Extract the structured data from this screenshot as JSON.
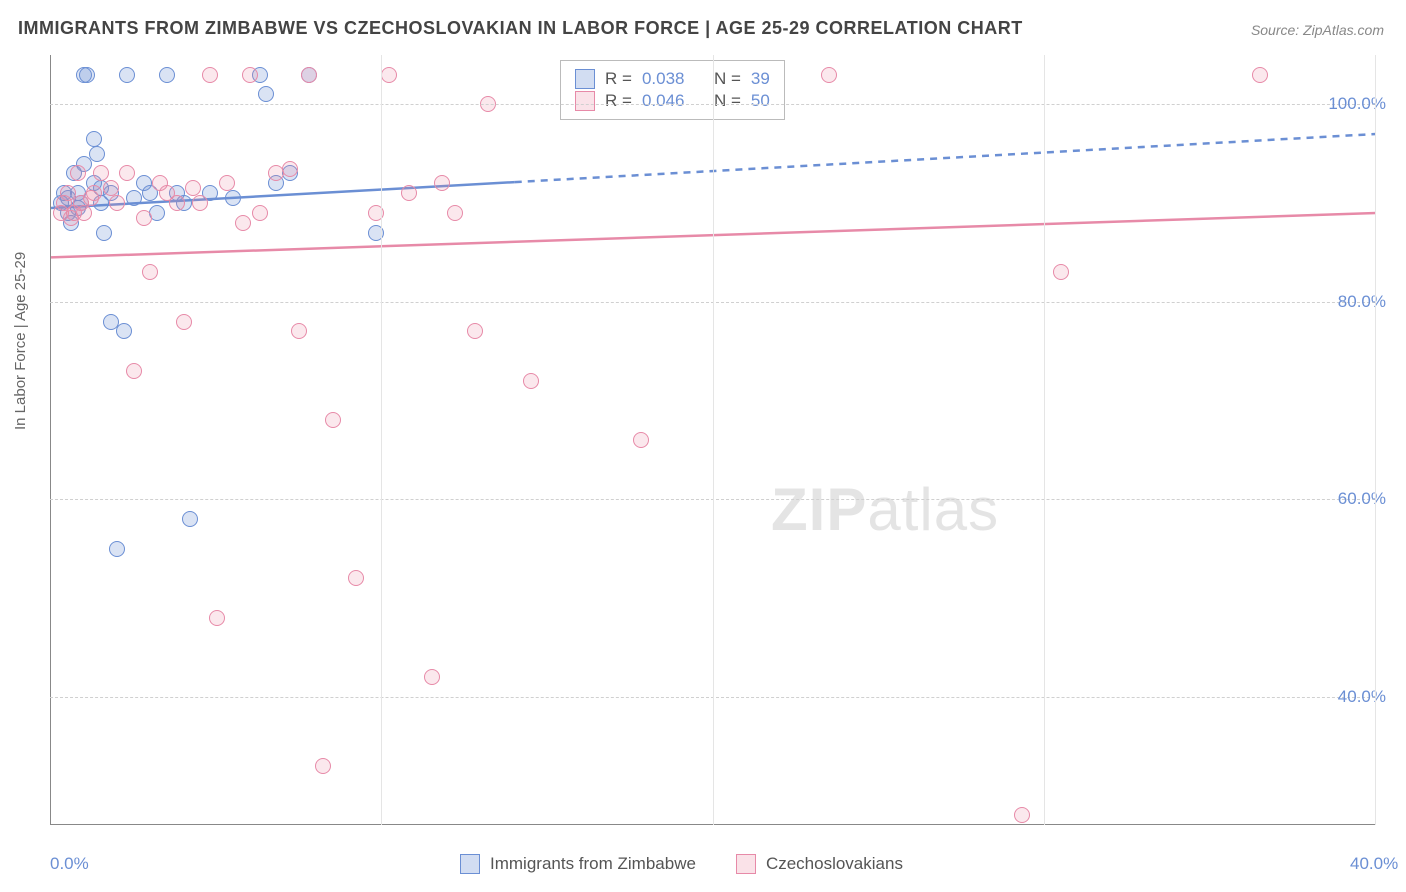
{
  "title": "IMMIGRANTS FROM ZIMBABWE VS CZECHOSLOVAKIAN IN LABOR FORCE | AGE 25-29 CORRELATION CHART",
  "source": "Source: ZipAtlas.com",
  "ylabel": "In Labor Force | Age 25-29",
  "watermark_bold": "ZIP",
  "watermark_light": "atlas",
  "chart": {
    "type": "scatter",
    "xlim": [
      0,
      40
    ],
    "ylim": [
      27,
      105
    ],
    "background_color": "#ffffff",
    "grid_color": "#d0d0d0",
    "axis_color": "#888888",
    "tick_color": "#6b8fd4",
    "marker_size": 16,
    "yticks": [
      {
        "v": 40,
        "label": "40.0%"
      },
      {
        "v": 60,
        "label": "60.0%"
      },
      {
        "v": 80,
        "label": "80.0%"
      },
      {
        "v": 100,
        "label": "100.0%"
      }
    ],
    "xticks": [
      {
        "v": 0,
        "label": "0.0%"
      },
      {
        "v": 10,
        "label": ""
      },
      {
        "v": 20,
        "label": ""
      },
      {
        "v": 30,
        "label": ""
      },
      {
        "v": 40,
        "label": "40.0%"
      }
    ],
    "series": [
      {
        "name": "Immigrants from Zimbabwe",
        "color": "#6b8fd4",
        "fill": "rgba(107,143,212,0.25)",
        "R": "0.038",
        "N": "39",
        "trend": {
          "y0": 89.5,
          "y1": 97,
          "solid_until_x": 14,
          "stroke_width": 2.5,
          "dash": "7,6"
        },
        "points": [
          [
            0.3,
            90
          ],
          [
            0.4,
            91
          ],
          [
            0.5,
            89
          ],
          [
            0.5,
            90.5
          ],
          [
            0.6,
            88
          ],
          [
            0.7,
            93
          ],
          [
            0.8,
            89.5
          ],
          [
            0.8,
            91
          ],
          [
            0.9,
            90
          ],
          [
            1.0,
            94
          ],
          [
            1.0,
            103
          ],
          [
            1.1,
            103
          ],
          [
            1.3,
            92
          ],
          [
            1.3,
            96.5
          ],
          [
            1.4,
            95
          ],
          [
            1.5,
            90
          ],
          [
            1.5,
            91.5
          ],
          [
            1.6,
            87
          ],
          [
            1.8,
            78
          ],
          [
            1.8,
            91
          ],
          [
            2.0,
            55
          ],
          [
            2.2,
            77
          ],
          [
            2.3,
            103
          ],
          [
            2.5,
            90.5
          ],
          [
            2.8,
            92
          ],
          [
            3.0,
            91
          ],
          [
            3.2,
            89
          ],
          [
            3.5,
            103
          ],
          [
            3.8,
            91
          ],
          [
            4.0,
            90
          ],
          [
            4.2,
            58
          ],
          [
            4.8,
            91
          ],
          [
            5.5,
            90.5
          ],
          [
            6.3,
            103
          ],
          [
            6.5,
            101
          ],
          [
            6.8,
            92
          ],
          [
            7.2,
            93
          ],
          [
            7.8,
            103
          ],
          [
            9.8,
            87
          ]
        ]
      },
      {
        "name": "Czechoslovakians",
        "color": "#e78aa8",
        "fill": "rgba(235,140,165,0.2)",
        "R": "0.046",
        "N": "50",
        "trend": {
          "y0": 84.5,
          "y1": 89,
          "solid_until_x": 40,
          "stroke_width": 2.5,
          "dash": ""
        },
        "points": [
          [
            0.3,
            89
          ],
          [
            0.4,
            90
          ],
          [
            0.5,
            91
          ],
          [
            0.6,
            88.5
          ],
          [
            0.7,
            89
          ],
          [
            0.8,
            93
          ],
          [
            0.9,
            90
          ],
          [
            1.0,
            89
          ],
          [
            1.2,
            90.5
          ],
          [
            1.3,
            91
          ],
          [
            1.5,
            93
          ],
          [
            1.8,
            91.5
          ],
          [
            2.0,
            90
          ],
          [
            2.3,
            93
          ],
          [
            2.5,
            73
          ],
          [
            2.8,
            88.5
          ],
          [
            3.0,
            83
          ],
          [
            3.3,
            92
          ],
          [
            3.5,
            91
          ],
          [
            3.8,
            90
          ],
          [
            4.0,
            78
          ],
          [
            4.3,
            91.5
          ],
          [
            4.5,
            90
          ],
          [
            4.8,
            103
          ],
          [
            5.0,
            48
          ],
          [
            5.3,
            92
          ],
          [
            5.8,
            88
          ],
          [
            6.0,
            103
          ],
          [
            6.3,
            89
          ],
          [
            6.8,
            93
          ],
          [
            7.2,
            93.5
          ],
          [
            7.5,
            77
          ],
          [
            7.8,
            103
          ],
          [
            8.2,
            33
          ],
          [
            8.5,
            68
          ],
          [
            9.2,
            52
          ],
          [
            9.8,
            89
          ],
          [
            10.2,
            103
          ],
          [
            10.8,
            91
          ],
          [
            11.5,
            42
          ],
          [
            11.8,
            92
          ],
          [
            12.2,
            89
          ],
          [
            12.8,
            77
          ],
          [
            13.2,
            100
          ],
          [
            14.5,
            72
          ],
          [
            17.8,
            66
          ],
          [
            23.5,
            103
          ],
          [
            30.5,
            83
          ],
          [
            36.5,
            103
          ],
          [
            29.3,
            28
          ]
        ]
      }
    ]
  },
  "legend_top": {
    "r_label": "R =",
    "n_label": "N ="
  },
  "legend_bottom": [
    {
      "label": "Immigrants from Zimbabwe",
      "class": "sq-blue"
    },
    {
      "label": "Czechoslovakians",
      "class": "sq-pink"
    }
  ]
}
